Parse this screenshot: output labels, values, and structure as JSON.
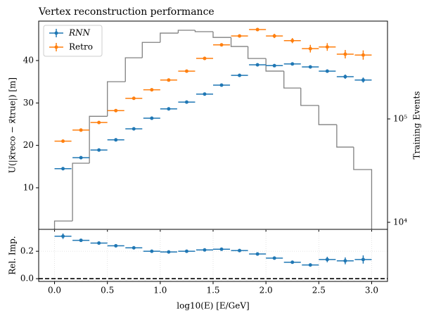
{
  "chart_data": [
    {
      "type": "errorbar",
      "title": "Vertex reconstruction performance",
      "y_label": "U(|x⃗reco − x⃗true|) [m]",
      "y2_label": "Training Events",
      "legend": "upper left",
      "xlim": [
        -0.15,
        3.15
      ],
      "ylim": [
        0.2,
        49.3
      ],
      "yticks": [
        10,
        20,
        30,
        40
      ],
      "y2lim": [
        8550,
        883000
      ],
      "y2log": true,
      "y2ticks": [
        {
          "value": 10000,
          "label": "10⁴"
        },
        {
          "value": 100000,
          "label": "10⁵"
        }
      ],
      "x": [
        0.08,
        0.25,
        0.42,
        0.58,
        0.75,
        0.92,
        1.08,
        1.25,
        1.42,
        1.58,
        1.75,
        1.92,
        2.08,
        2.25,
        2.42,
        2.58,
        2.75,
        2.92
      ],
      "series": [
        {
          "name": "RNN",
          "color": "#1f77b4",
          "xerr": 0.08,
          "values": [
            14.5,
            17.1,
            18.9,
            21.3,
            23.9,
            26.4,
            28.6,
            30.2,
            32.1,
            34.2,
            36.5,
            39.0,
            38.8,
            39.2,
            38.5,
            37.5,
            36.2,
            35.4
          ],
          "errors": [
            0.3,
            0.3,
            0.3,
            0.3,
            0.3,
            0.3,
            0.3,
            0.3,
            0.3,
            0.3,
            0.3,
            0.3,
            0.3,
            0.3,
            0.3,
            0.4,
            0.5,
            0.6
          ]
        },
        {
          "name": "Retro",
          "color": "#ff7f0e",
          "xerr": 0.08,
          "values": [
            21.0,
            23.6,
            25.4,
            28.2,
            31.1,
            33.1,
            35.4,
            37.5,
            40.5,
            43.7,
            45.8,
            47.3,
            45.8,
            44.7,
            42.8,
            43.2,
            41.5,
            41.3
          ],
          "errors": [
            0.3,
            0.3,
            0.3,
            0.3,
            0.3,
            0.3,
            0.3,
            0.3,
            0.3,
            0.3,
            0.3,
            0.3,
            0.5,
            0.6,
            0.9,
            0.9,
            1.0,
            1.1
          ]
        }
      ],
      "histogram": {
        "axis": "y2",
        "color": "#808080",
        "bins": [
          0,
          0.17,
          0.33,
          0.5,
          0.67,
          0.83,
          1.0,
          1.17,
          1.33,
          1.5,
          1.67,
          1.83,
          2.0,
          2.17,
          2.33,
          2.5,
          2.67,
          2.83,
          3.0
        ],
        "counts": [
          10300,
          37300,
          106000,
          229000,
          390000,
          550000,
          676000,
          720000,
          698000,
          614000,
          502000,
          384000,
          290000,
          199000,
          135000,
          88000,
          53400,
          32400
        ]
      }
    },
    {
      "type": "errorbar",
      "y_label": "Rel. Imp.",
      "x_label": "log10(E) [E/GeV]",
      "grid": true,
      "xlim": [
        -0.15,
        3.15
      ],
      "xticks": [
        {
          "value": 0,
          "label": "0.0"
        },
        0.5,
        {
          "value": 1,
          "label": "1.0"
        },
        1.5,
        {
          "value": 2,
          "label": "2.0"
        },
        2.5,
        {
          "value": 3,
          "label": "3.0"
        }
      ],
      "ylim": [
        -0.02,
        0.36
      ],
      "yticks": [
        {
          "value": 0,
          "label": "0.0"
        },
        0.2
      ],
      "hline": 0,
      "x": [
        0.08,
        0.25,
        0.42,
        0.58,
        0.75,
        0.92,
        1.08,
        1.25,
        1.42,
        1.58,
        1.75,
        1.92,
        2.08,
        2.25,
        2.42,
        2.58,
        2.75,
        2.92
      ],
      "color": "#1f77b4",
      "xerr": 0.08,
      "values": [
        0.31,
        0.28,
        0.26,
        0.24,
        0.225,
        0.2,
        0.195,
        0.2,
        0.21,
        0.215,
        0.205,
        0.18,
        0.15,
        0.12,
        0.1,
        0.14,
        0.13,
        0.14
      ],
      "errors": [
        0.02,
        0.01,
        0.01,
        0.01,
        0.01,
        0.01,
        0.01,
        0.01,
        0.01,
        0.01,
        0.01,
        0.01,
        0.01,
        0.01,
        0.01,
        0.02,
        0.025,
        0.03
      ]
    }
  ]
}
